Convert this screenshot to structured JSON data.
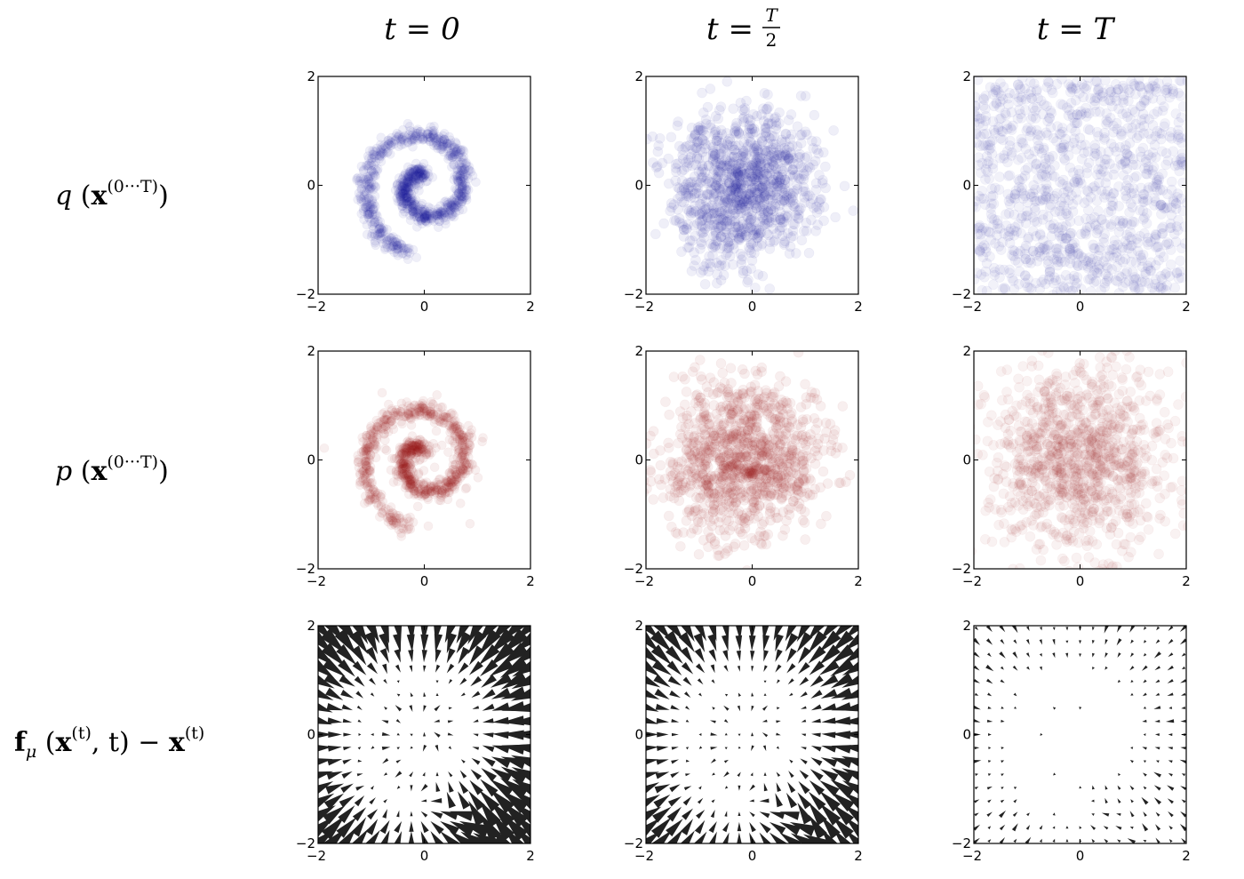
{
  "columns": [
    {
      "label_pre": "t = ",
      "label_val": "0",
      "fraction": false
    },
    {
      "label_pre": "t = ",
      "frac_num": "T",
      "frac_den": "2",
      "fraction": true
    },
    {
      "label_pre": "t = ",
      "label_val": "T",
      "fraction": false
    }
  ],
  "rows": [
    {
      "fn": "q",
      "arg": "x",
      "sup": "(0···T)",
      "kind": "scatter",
      "color": "#1f1fa0"
    },
    {
      "fn": "p",
      "arg": "x",
      "sup": "(0···T)",
      "kind": "scatter",
      "color": "#a01f1f"
    },
    {
      "fn": "f",
      "sub": "μ",
      "arg": "x",
      "sup": "(t)",
      "extra": ", t",
      "minus": "−",
      "arg2": "x",
      "sup2": "(t)",
      "kind": "quiver",
      "color": "#222222"
    }
  ],
  "chart_data": {
    "type": "scatter",
    "xlim": [
      -2,
      2
    ],
    "ylim": [
      -2,
      2
    ],
    "xticks": [
      "−2",
      "0",
      "2"
    ],
    "yticks": [
      "−2",
      "0",
      "2"
    ],
    "grid": false,
    "series": [
      {
        "row": "q",
        "col": "t=0",
        "kind": "scatter",
        "spread": 0.08,
        "pattern": "spiral"
      },
      {
        "row": "q",
        "col": "t=T/2",
        "kind": "scatter",
        "spread": 0.42,
        "pattern": "noisy-spiral"
      },
      {
        "row": "q",
        "col": "t=T",
        "kind": "scatter",
        "spread": 2.0,
        "pattern": "uniform-gaussian"
      },
      {
        "row": "p",
        "col": "t=0",
        "kind": "scatter",
        "spread": 0.08,
        "pattern": "spiral-with-outliers"
      },
      {
        "row": "p",
        "col": "t=T/2",
        "kind": "scatter",
        "spread": 0.45,
        "pattern": "noisy-spiral"
      },
      {
        "row": "p",
        "col": "t=T",
        "kind": "scatter",
        "spread": 2.0,
        "pattern": "gaussian"
      },
      {
        "row": "f",
        "col": "t=0",
        "kind": "quiver",
        "magnitude": 1.0,
        "pattern": "drift-toward-spiral"
      },
      {
        "row": "f",
        "col": "t=T/2",
        "kind": "quiver",
        "magnitude": 0.85,
        "pattern": "drift-toward-spiral"
      },
      {
        "row": "f",
        "col": "t=T",
        "kind": "quiver",
        "magnitude": 0.35,
        "pattern": "weak-drift"
      }
    ]
  }
}
